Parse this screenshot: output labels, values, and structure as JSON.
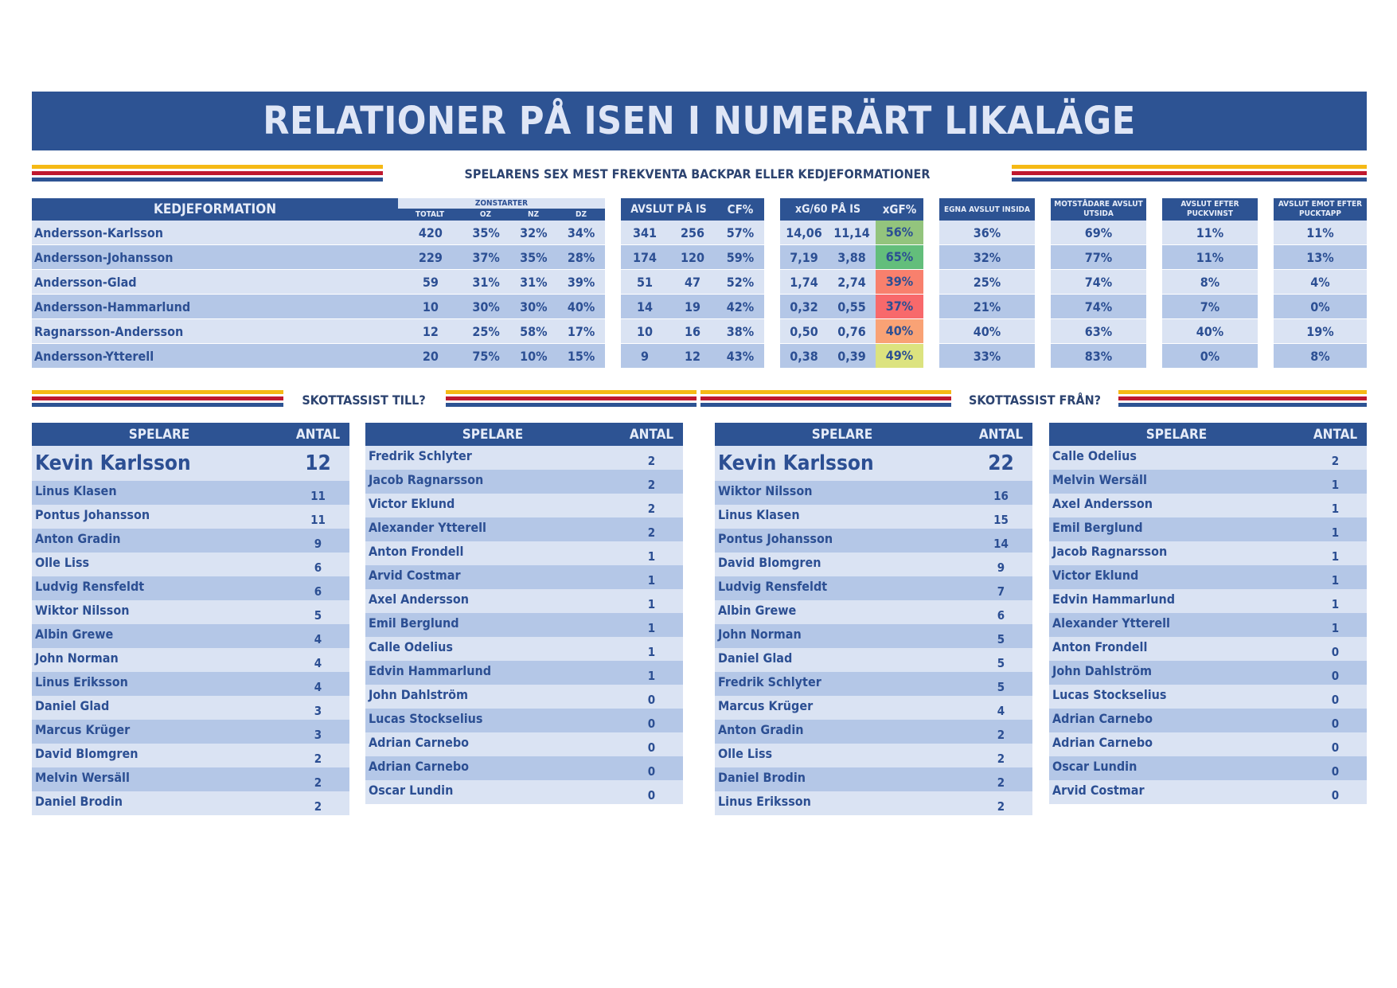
{
  "title": "RELATIONER PÅ ISEN I NUMERÄRT LIKALÄGE",
  "subtitle": "SPELARENS SEX MEST FREKVENTA BACKPAR ELLER KEDJEFORMATIONER",
  "headers": {
    "kedjeformation": "KEDJEFORMATION",
    "zonstarter": "ZONSTARTER",
    "totalt": "TOTALT",
    "oz": "OZ",
    "nz": "NZ",
    "dz": "DZ",
    "avslut_pa_is": "AVSLUT PÅ IS",
    "cf": "CF%",
    "xg60": "xG/60 PÅ IS",
    "xgf": "xGF%",
    "egna_avslut": "EGNA AVSLUT INSIDA",
    "motstandare_avslut": "MOTSTÅDARE AVSLUT UTSIDA",
    "avslut_puckvinst": "AVSLUT EFTER PUCKVINST",
    "avslut_pucktapp": "AVSLUT EMOT EFTER PUCKTAPP"
  },
  "formations": [
    {
      "name": "Andersson-Karlsson",
      "totalt": "420",
      "oz": "35%",
      "nz": "32%",
      "dz": "34%",
      "sf": "341",
      "sa": "256",
      "cf": "57%",
      "xgf60": "14,06",
      "xga60": "11,14",
      "xgf": "56%",
      "xgf_color": "#93c47d",
      "inside": "36%",
      "outside": "69%",
      "puckvinst": "11%",
      "pucktapp": "11%"
    },
    {
      "name": "Andersson-Johansson",
      "totalt": "229",
      "oz": "37%",
      "nz": "35%",
      "dz": "28%",
      "sf": "174",
      "sa": "120",
      "cf": "59%",
      "xgf60": "7,19",
      "xga60": "3,88",
      "xgf": "65%",
      "xgf_color": "#63be7b",
      "inside": "32%",
      "outside": "77%",
      "puckvinst": "11%",
      "pucktapp": "13%"
    },
    {
      "name": "Andersson-Glad",
      "totalt": "59",
      "oz": "31%",
      "nz": "31%",
      "dz": "39%",
      "sf": "51",
      "sa": "47",
      "cf": "52%",
      "xgf60": "1,74",
      "xga60": "2,74",
      "xgf": "39%",
      "xgf_color": "#f8806d",
      "inside": "25%",
      "outside": "74%",
      "puckvinst": "8%",
      "pucktapp": "4%"
    },
    {
      "name": "Andersson-Hammarlund",
      "totalt": "10",
      "oz": "30%",
      "nz": "30%",
      "dz": "40%",
      "sf": "14",
      "sa": "19",
      "cf": "42%",
      "xgf60": "0,32",
      "xga60": "0,55",
      "xgf": "37%",
      "xgf_color": "#f8696b",
      "inside": "21%",
      "outside": "74%",
      "puckvinst": "7%",
      "pucktapp": "0%"
    },
    {
      "name": "Ragnarsson-Andersson",
      "totalt": "12",
      "oz": "25%",
      "nz": "58%",
      "dz": "17%",
      "sf": "10",
      "sa": "16",
      "cf": "38%",
      "xgf60": "0,50",
      "xga60": "0,76",
      "xgf": "40%",
      "xgf_color": "#f9a275",
      "inside": "40%",
      "outside": "63%",
      "puckvinst": "40%",
      "pucktapp": "19%"
    },
    {
      "name": "Andersson-Ytterell",
      "totalt": "20",
      "oz": "75%",
      "nz": "10%",
      "dz": "15%",
      "sf": "9",
      "sa": "12",
      "cf": "43%",
      "xgf60": "0,38",
      "xga60": "0,39",
      "xgf": "49%",
      "xgf_color": "#dce37f",
      "inside": "33%",
      "outside": "83%",
      "puckvinst": "0%",
      "pucktapp": "8%"
    }
  ],
  "assist_till_label": "SKOTTASSIST TILL?",
  "assist_fran_label": "SKOTTASSIST FRÅN?",
  "list_headers": {
    "spelare": "SPELARE",
    "antal": "ANTAL"
  },
  "assist_till_1": [
    {
      "name": "Kevin Karlsson",
      "count": "12"
    },
    {
      "name": "Linus Klasen",
      "count": "11"
    },
    {
      "name": "Pontus Johansson",
      "count": "11"
    },
    {
      "name": "Anton Gradin",
      "count": "9"
    },
    {
      "name": "Olle Liss",
      "count": "6"
    },
    {
      "name": "Ludvig Rensfeldt",
      "count": "6"
    },
    {
      "name": "Wiktor Nilsson",
      "count": "5"
    },
    {
      "name": "Albin Grewe",
      "count": "4"
    },
    {
      "name": "John Norman",
      "count": "4"
    },
    {
      "name": "Linus Eriksson",
      "count": "4"
    },
    {
      "name": "Daniel Glad",
      "count": "3"
    },
    {
      "name": "Marcus Krüger",
      "count": "3"
    },
    {
      "name": "David Blomgren",
      "count": "2"
    },
    {
      "name": "Melvin Wersäll",
      "count": "2"
    },
    {
      "name": "Daniel Brodin",
      "count": "2"
    }
  ],
  "assist_till_2": [
    {
      "name": "Fredrik Schlyter",
      "count": "2"
    },
    {
      "name": "Jacob Ragnarsson",
      "count": "2"
    },
    {
      "name": "Victor Eklund",
      "count": "2"
    },
    {
      "name": "Alexander Ytterell",
      "count": "2"
    },
    {
      "name": "Anton Frondell",
      "count": "1"
    },
    {
      "name": "Arvid Costmar",
      "count": "1"
    },
    {
      "name": "Axel Andersson",
      "count": "1"
    },
    {
      "name": "Emil Berglund",
      "count": "1"
    },
    {
      "name": "Calle Odelius",
      "count": "1"
    },
    {
      "name": "Edvin Hammarlund",
      "count": "1"
    },
    {
      "name": "John Dahlström",
      "count": "0"
    },
    {
      "name": "Lucas Stockselius",
      "count": "0"
    },
    {
      "name": "Adrian Carnebo",
      "count": "0"
    },
    {
      "name": "Adrian Carnebo",
      "count": "0"
    },
    {
      "name": "Oscar Lundin",
      "count": "0"
    }
  ],
  "assist_fran_1": [
    {
      "name": "Kevin Karlsson",
      "count": "22"
    },
    {
      "name": "Wiktor Nilsson",
      "count": "16"
    },
    {
      "name": "Linus Klasen",
      "count": "15"
    },
    {
      "name": "Pontus Johansson",
      "count": "14"
    },
    {
      "name": "David Blomgren",
      "count": "9"
    },
    {
      "name": "Ludvig Rensfeldt",
      "count": "7"
    },
    {
      "name": "Albin Grewe",
      "count": "6"
    },
    {
      "name": "John Norman",
      "count": "5"
    },
    {
      "name": "Daniel Glad",
      "count": "5"
    },
    {
      "name": "Fredrik Schlyter",
      "count": "5"
    },
    {
      "name": "Marcus Krüger",
      "count": "4"
    },
    {
      "name": "Anton Gradin",
      "count": "2"
    },
    {
      "name": "Olle Liss",
      "count": "2"
    },
    {
      "name": "Daniel Brodin",
      "count": "2"
    },
    {
      "name": "Linus Eriksson",
      "count": "2"
    }
  ],
  "assist_fran_2": [
    {
      "name": "Calle Odelius",
      "count": "2"
    },
    {
      "name": "Melvin Wersäll",
      "count": "1"
    },
    {
      "name": "Axel Andersson",
      "count": "1"
    },
    {
      "name": "Emil Berglund",
      "count": "1"
    },
    {
      "name": "Jacob Ragnarsson",
      "count": "1"
    },
    {
      "name": "Victor Eklund",
      "count": "1"
    },
    {
      "name": "Edvin Hammarlund",
      "count": "1"
    },
    {
      "name": "Alexander Ytterell",
      "count": "1"
    },
    {
      "name": "Anton Frondell",
      "count": "0"
    },
    {
      "name": "John Dahlström",
      "count": "0"
    },
    {
      "name": "Lucas Stockselius",
      "count": "0"
    },
    {
      "name": "Adrian Carnebo",
      "count": "0"
    },
    {
      "name": "Adrian Carnebo",
      "count": "0"
    },
    {
      "name": "Oscar Lundin",
      "count": "0"
    },
    {
      "name": "Arvid Costmar",
      "count": "0"
    }
  ]
}
